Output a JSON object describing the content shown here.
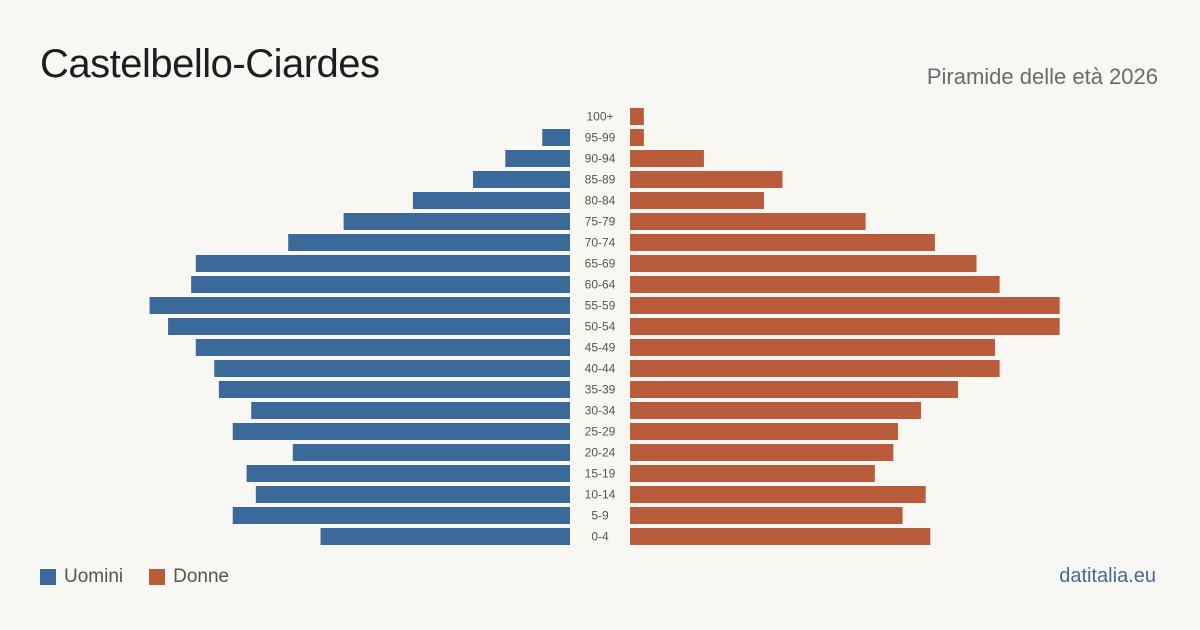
{
  "header": {
    "title": "Castelbello-Ciardes",
    "subtitle": "Piramide delle età 2026"
  },
  "legend": {
    "men": "Uomini",
    "women": "Donne"
  },
  "brand": "datitalia.eu",
  "colors": {
    "men": "#3b6a9a",
    "women": "#b85c3c",
    "background": "#f9f7f3"
  },
  "chart_data": {
    "type": "bar",
    "orientation": "horizontal-pyramid",
    "categories": [
      "100+",
      "95-99",
      "90-94",
      "85-89",
      "80-84",
      "75-79",
      "70-74",
      "65-69",
      "60-64",
      "55-59",
      "50-54",
      "45-49",
      "40-44",
      "35-39",
      "30-34",
      "25-29",
      "20-24",
      "15-19",
      "10-14",
      "5-9",
      "0-4"
    ],
    "series": [
      {
        "name": "Uomini",
        "values": [
          0,
          6,
          14,
          21,
          34,
          49,
          61,
          81,
          82,
          91,
          87,
          81,
          77,
          76,
          69,
          73,
          60,
          70,
          68,
          73,
          54
        ]
      },
      {
        "name": "Donne",
        "values": [
          3,
          3,
          16,
          33,
          29,
          51,
          66,
          75,
          80,
          93,
          93,
          79,
          80,
          71,
          63,
          58,
          57,
          53,
          64,
          59,
          65
        ]
      }
    ]
  }
}
